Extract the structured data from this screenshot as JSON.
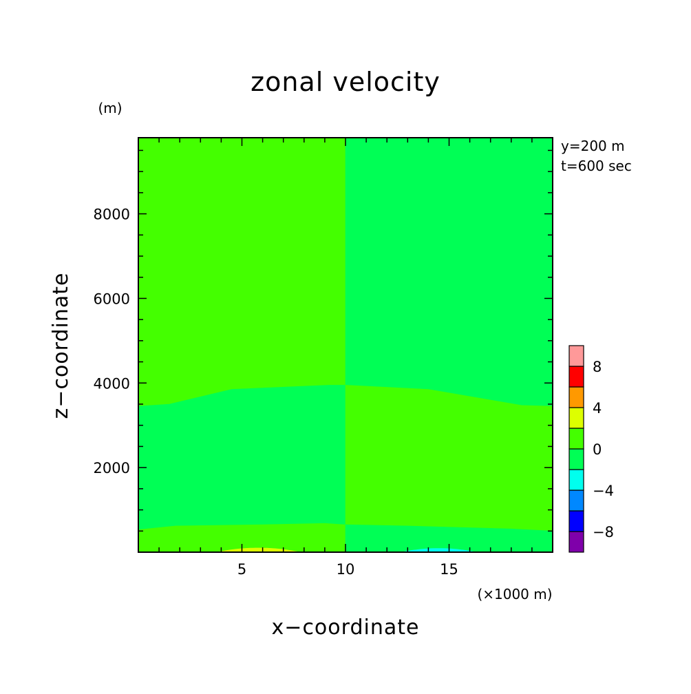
{
  "chart_data": {
    "type": "heatmap",
    "title": "zonal velocity",
    "xlabel": "x−coordinate",
    "ylabel": "z−coordinate",
    "x_unit": "(×1000 m)",
    "y_unit": "(m)",
    "annotations": [
      "y=200 m",
      "t=600 sec"
    ],
    "xlim": [
      0,
      20000
    ],
    "ylim": [
      0,
      9800
    ],
    "x_tick_values": [
      5000,
      10000,
      15000
    ],
    "x_tick_labels": [
      "5",
      "10",
      "15"
    ],
    "y_tick_values": [
      2000,
      4000,
      6000,
      8000
    ],
    "y_tick_labels": [
      "2000",
      "4000",
      "6000",
      "8000"
    ],
    "colorbar": {
      "bounds": [
        -10,
        -8,
        -6,
        -4,
        -2,
        0,
        2,
        4,
        6,
        8,
        10
      ],
      "colors": [
        "#7f00aa",
        "#0000ff",
        "#0088ff",
        "#00ffee",
        "#00ff55",
        "#44ff00",
        "#ddff00",
        "#ff9900",
        "#ff0000",
        "#ff9999"
      ],
      "tick_values": [
        8,
        4,
        0,
        -4,
        -8
      ],
      "tick_labels": [
        "8",
        "4",
        "0",
        "−4",
        "−8"
      ]
    },
    "regions": [
      {
        "name": "upper-left",
        "range": [
          0,
          2
        ],
        "color": "#44ff00",
        "x_range": [
          0,
          10000
        ],
        "z_boundary": [
          [
            0,
            3450
          ],
          [
            1500,
            3500
          ],
          [
            4500,
            3850
          ],
          [
            9200,
            3950
          ],
          [
            10000,
            3950
          ]
        ],
        "z_top": 9800
      },
      {
        "name": "upper-right",
        "range": [
          -2,
          0
        ],
        "color": "#00ff55",
        "x_range": [
          10000,
          20000
        ],
        "z_boundary": [
          [
            10000,
            3950
          ],
          [
            14000,
            3850
          ],
          [
            18500,
            3470
          ],
          [
            20000,
            3450
          ]
        ],
        "z_top": 9800
      },
      {
        "name": "middle-left",
        "range": [
          -2,
          0
        ],
        "color": "#00ff55",
        "x_range": [
          0,
          10000
        ],
        "z_lower": [
          [
            0,
            530
          ],
          [
            1800,
            620
          ],
          [
            6000,
            650
          ],
          [
            9000,
            680
          ],
          [
            10000,
            650
          ]
        ],
        "z_upper": [
          [
            0,
            3450
          ],
          [
            1500,
            3500
          ],
          [
            4500,
            3850
          ],
          [
            9200,
            3950
          ],
          [
            10000,
            3950
          ]
        ]
      },
      {
        "name": "middle-right",
        "range": [
          0,
          2
        ],
        "color": "#44ff00",
        "x_range": [
          10000,
          20000
        ],
        "z_lower": [
          [
            10000,
            650
          ],
          [
            13000,
            620
          ],
          [
            18000,
            550
          ],
          [
            20000,
            500
          ]
        ],
        "z_upper": [
          [
            10000,
            3950
          ],
          [
            14000,
            3850
          ],
          [
            18500,
            3470
          ],
          [
            20000,
            3450
          ]
        ]
      },
      {
        "name": "bottom-left",
        "range": [
          0,
          2
        ],
        "color": "#44ff00",
        "x_range": [
          0,
          10000
        ],
        "z_upper": [
          [
            0,
            530
          ],
          [
            1800,
            620
          ],
          [
            6000,
            650
          ],
          [
            9000,
            680
          ],
          [
            10000,
            650
          ]
        ]
      },
      {
        "name": "bottom-right",
        "range": [
          -2,
          0
        ],
        "color": "#00ff55",
        "x_range": [
          10000,
          20000
        ],
        "z_upper": [
          [
            10000,
            650
          ],
          [
            13000,
            620
          ],
          [
            18000,
            550
          ],
          [
            20000,
            500
          ]
        ]
      },
      {
        "name": "positive-cell",
        "range": [
          2,
          4
        ],
        "color": "#ddff00",
        "x_center": 5800,
        "half_width": 2000,
        "z_peak": 100
      },
      {
        "name": "negative-cell",
        "range": [
          -4,
          -2
        ],
        "color": "#00ffee",
        "x_center": 14500,
        "half_width": 1800,
        "z_peak": 90
      }
    ],
    "grid": false,
    "legend_position": "right"
  }
}
